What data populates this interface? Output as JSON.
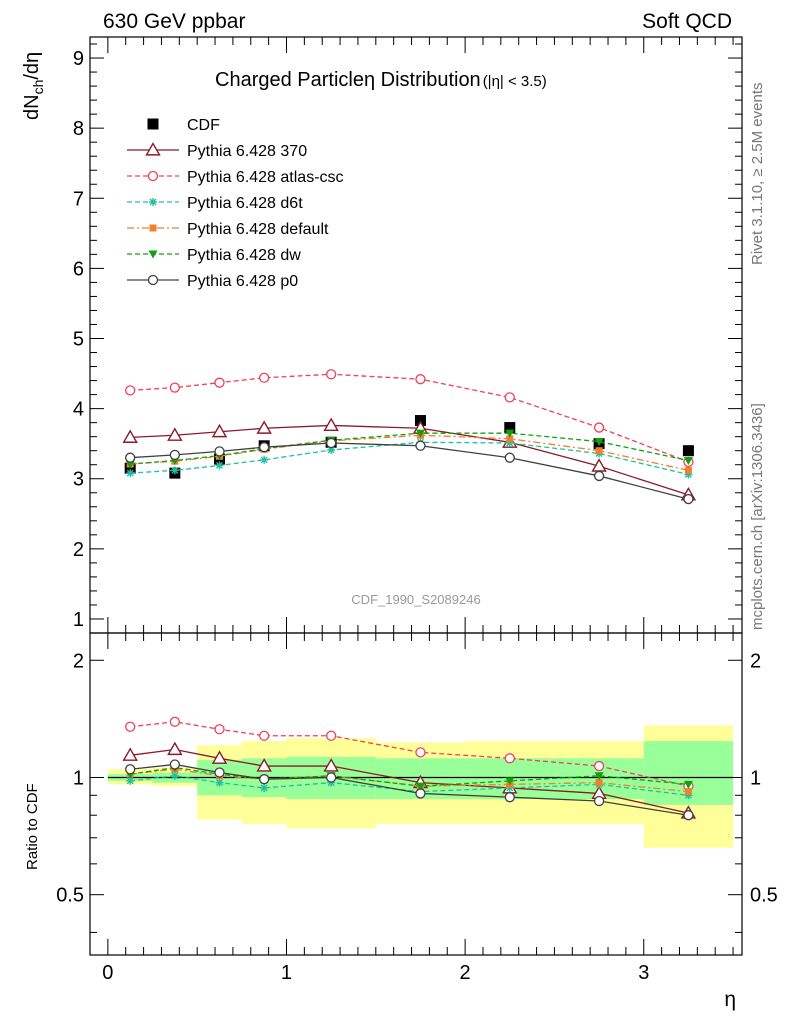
{
  "header": {
    "left": "630 GeV ppbar",
    "right": "Soft QCD"
  },
  "side_labels": {
    "rivet": "Rivet 3.1.10, ≥ 2.5M events",
    "mcplots": "mcplots.cern.ch [arXiv:1306.3436]"
  },
  "chart_data": [
    {
      "type": "line",
      "title": "Charged Particleη Distribution",
      "title_suffix": "(|η| < 3.5)",
      "ylabel": "dNₕ/dη",
      "ylabel_main": "dN",
      "ylabel_sub": "ch",
      "ylabel_tail": "/dη",
      "reference": "CDF_1990_S2089246",
      "xlim": [
        -0.1,
        3.55
      ],
      "ylim": [
        0.8,
        9.3
      ],
      "yticks": [
        "1",
        "2",
        "3",
        "4",
        "5",
        "6",
        "7",
        "8",
        "9"
      ],
      "x": [
        0.125,
        0.375,
        0.625,
        0.875,
        1.25,
        1.75,
        2.25,
        2.75,
        3.25
      ],
      "legend_position": "top-left",
      "series": [
        {
          "name": "CDF",
          "style": "data",
          "color": "#000000",
          "marker": "square",
          "values": [
            3.15,
            3.08,
            3.28,
            3.47,
            3.52,
            3.83,
            3.73,
            3.5,
            3.4
          ]
        },
        {
          "name": "Pythia 6.428 370",
          "style": "solid",
          "color": "#8b1a2b",
          "marker": "triangle",
          "values": [
            3.59,
            3.62,
            3.67,
            3.72,
            3.76,
            3.72,
            3.52,
            3.18,
            2.77
          ]
        },
        {
          "name": "Pythia 6.428 atlas-csc",
          "style": "dashed",
          "color": "#f0405a",
          "marker": "circle",
          "values": [
            4.26,
            4.3,
            4.37,
            4.44,
            4.49,
            4.42,
            4.16,
            3.73,
            3.24
          ]
        },
        {
          "name": "Pythia 6.428 d6t",
          "style": "dashed",
          "color": "#20c0a0",
          "marker": "star",
          "values": [
            3.08,
            3.12,
            3.19,
            3.27,
            3.41,
            3.52,
            3.51,
            3.36,
            3.06
          ]
        },
        {
          "name": "Pythia 6.428 default",
          "style": "dashdot",
          "color": "#f08030",
          "marker": "filled-square",
          "values": [
            3.21,
            3.25,
            3.32,
            3.42,
            3.54,
            3.62,
            3.57,
            3.4,
            3.12
          ]
        },
        {
          "name": "Pythia 6.428 dw",
          "style": "dashed",
          "color": "#10a010",
          "marker": "filled-triangle-down",
          "values": [
            3.21,
            3.26,
            3.33,
            3.43,
            3.55,
            3.65,
            3.65,
            3.53,
            3.26
          ]
        },
        {
          "name": "Pythia 6.428 p0",
          "style": "solid",
          "color": "#404040",
          "marker": "circle",
          "values": [
            3.3,
            3.34,
            3.39,
            3.45,
            3.51,
            3.47,
            3.3,
            3.04,
            2.71
          ]
        }
      ]
    },
    {
      "type": "line",
      "ylabel": "Ratio to CDF",
      "xlabel": "η",
      "xlim": [
        -0.1,
        3.55
      ],
      "ylim": [
        0.35,
        2.35
      ],
      "yticks": [
        "0.5",
        "1",
        "2"
      ],
      "xticks": [
        "0",
        "1",
        "2",
        "3"
      ],
      "x": [
        0.125,
        0.375,
        0.625,
        0.875,
        1.25,
        1.75,
        2.25,
        2.75,
        3.25
      ],
      "uncertainty_bands": {
        "edges": [
          0,
          0.25,
          0.5,
          0.75,
          1.0,
          1.5,
          2.0,
          2.5,
          3.0,
          3.5
        ],
        "yellow_lo": [
          0.96,
          0.95,
          0.78,
          0.76,
          0.74,
          0.76,
          0.76,
          0.76,
          0.66
        ],
        "yellow_hi": [
          1.05,
          1.06,
          1.21,
          1.24,
          1.26,
          1.23,
          1.24,
          1.24,
          1.36
        ],
        "green_lo": [
          0.98,
          0.97,
          0.9,
          0.89,
          0.88,
          0.88,
          0.88,
          0.88,
          0.85
        ],
        "green_hi": [
          1.02,
          1.03,
          1.11,
          1.12,
          1.13,
          1.12,
          1.12,
          1.12,
          1.24
        ],
        "yellow_color": "#ffff99",
        "green_color": "#99ff99"
      },
      "series": [
        {
          "name": "Pythia 6.428 370",
          "values": [
            1.14,
            1.18,
            1.12,
            1.07,
            1.07,
            0.97,
            0.94,
            0.91,
            0.81
          ]
        },
        {
          "name": "Pythia 6.428 atlas-csc",
          "values": [
            1.35,
            1.39,
            1.33,
            1.28,
            1.28,
            1.16,
            1.12,
            1.07,
            0.95
          ]
        },
        {
          "name": "Pythia 6.428 d6t",
          "values": [
            0.98,
            1.01,
            0.97,
            0.94,
            0.97,
            0.92,
            0.94,
            0.96,
            0.9
          ]
        },
        {
          "name": "Pythia 6.428 default",
          "values": [
            1.02,
            1.05,
            1.01,
            0.99,
            1.01,
            0.95,
            0.96,
            0.97,
            0.92
          ]
        },
        {
          "name": "Pythia 6.428 dw",
          "values": [
            1.02,
            1.06,
            1.02,
            0.99,
            1.01,
            0.95,
            0.98,
            1.01,
            0.96
          ]
        },
        {
          "name": "Pythia 6.428 p0",
          "values": [
            1.05,
            1.08,
            1.03,
            0.99,
            1.0,
            0.91,
            0.89,
            0.87,
            0.8
          ]
        }
      ]
    }
  ]
}
